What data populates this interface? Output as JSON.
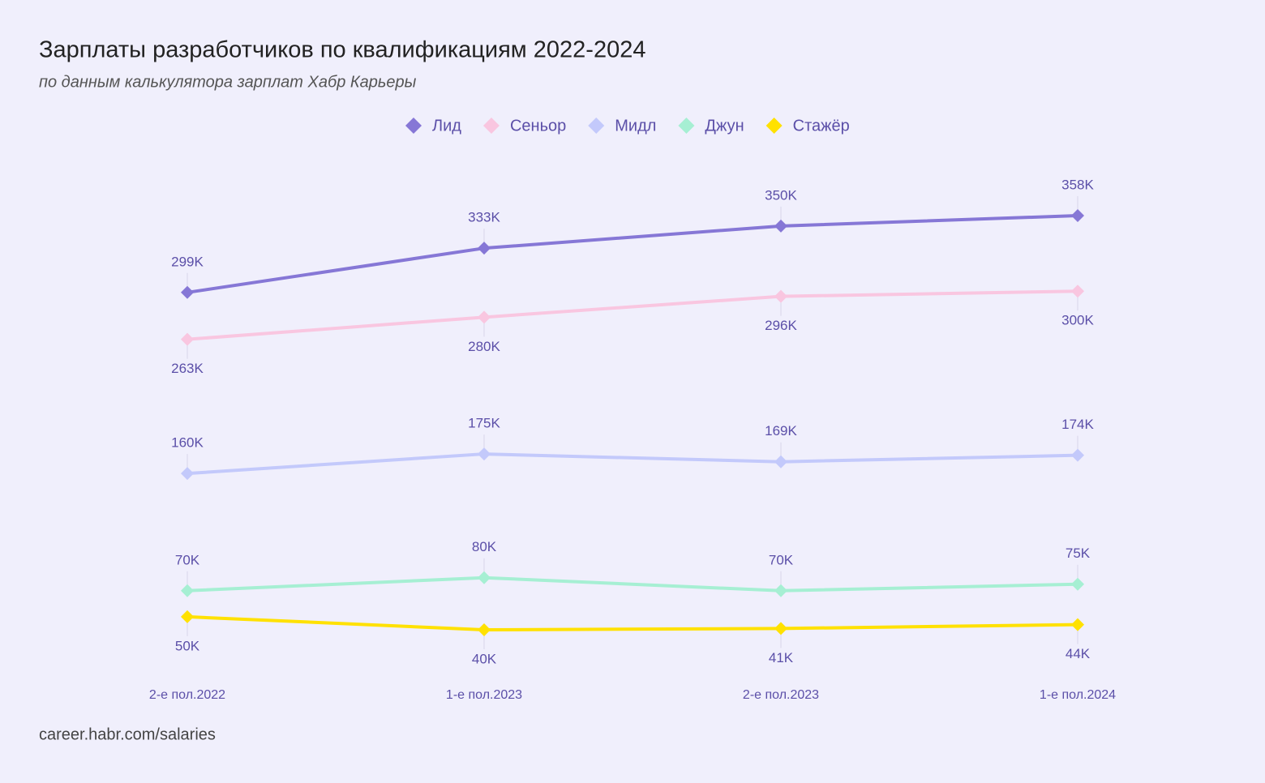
{
  "chart_data": {
    "type": "line",
    "title": "Зарплаты разработчиков по квалификациям 2022-2024",
    "subtitle": "по данным калькулятора зарплат Хабр Карьеры",
    "source": "career.habr.com/salaries",
    "categories": [
      "2-е пол.2022",
      "1-е пол.2023",
      "2-е пол.2023",
      "1-е пол.2024"
    ],
    "series": [
      {
        "name": "Лид",
        "color": "#8677d6",
        "label_position": "above",
        "values": [
          299,
          333,
          350,
          358
        ],
        "value_labels": [
          "299K",
          "333K",
          "350K",
          "358K"
        ]
      },
      {
        "name": "Сеньор",
        "color": "#f9c6e0",
        "label_position": "below",
        "values": [
          263,
          280,
          296,
          300
        ],
        "value_labels": [
          "263K",
          "280K",
          "296K",
          "300K"
        ]
      },
      {
        "name": "Мидл",
        "color": "#c3c9fb",
        "label_position": "above",
        "values": [
          160,
          175,
          169,
          174
        ],
        "value_labels": [
          "160K",
          "175K",
          "169K",
          "174K"
        ]
      },
      {
        "name": "Джун",
        "color": "#a6efd3",
        "label_position": "above",
        "values": [
          70,
          80,
          70,
          75
        ],
        "value_labels": [
          "70K",
          "80K",
          "70K",
          "75K"
        ]
      },
      {
        "name": "Стажёр",
        "color": "#ffe100",
        "label_position": "below",
        "values": [
          50,
          40,
          41,
          44
        ],
        "value_labels": [
          "50K",
          "40K",
          "41K",
          "44K"
        ]
      }
    ]
  }
}
